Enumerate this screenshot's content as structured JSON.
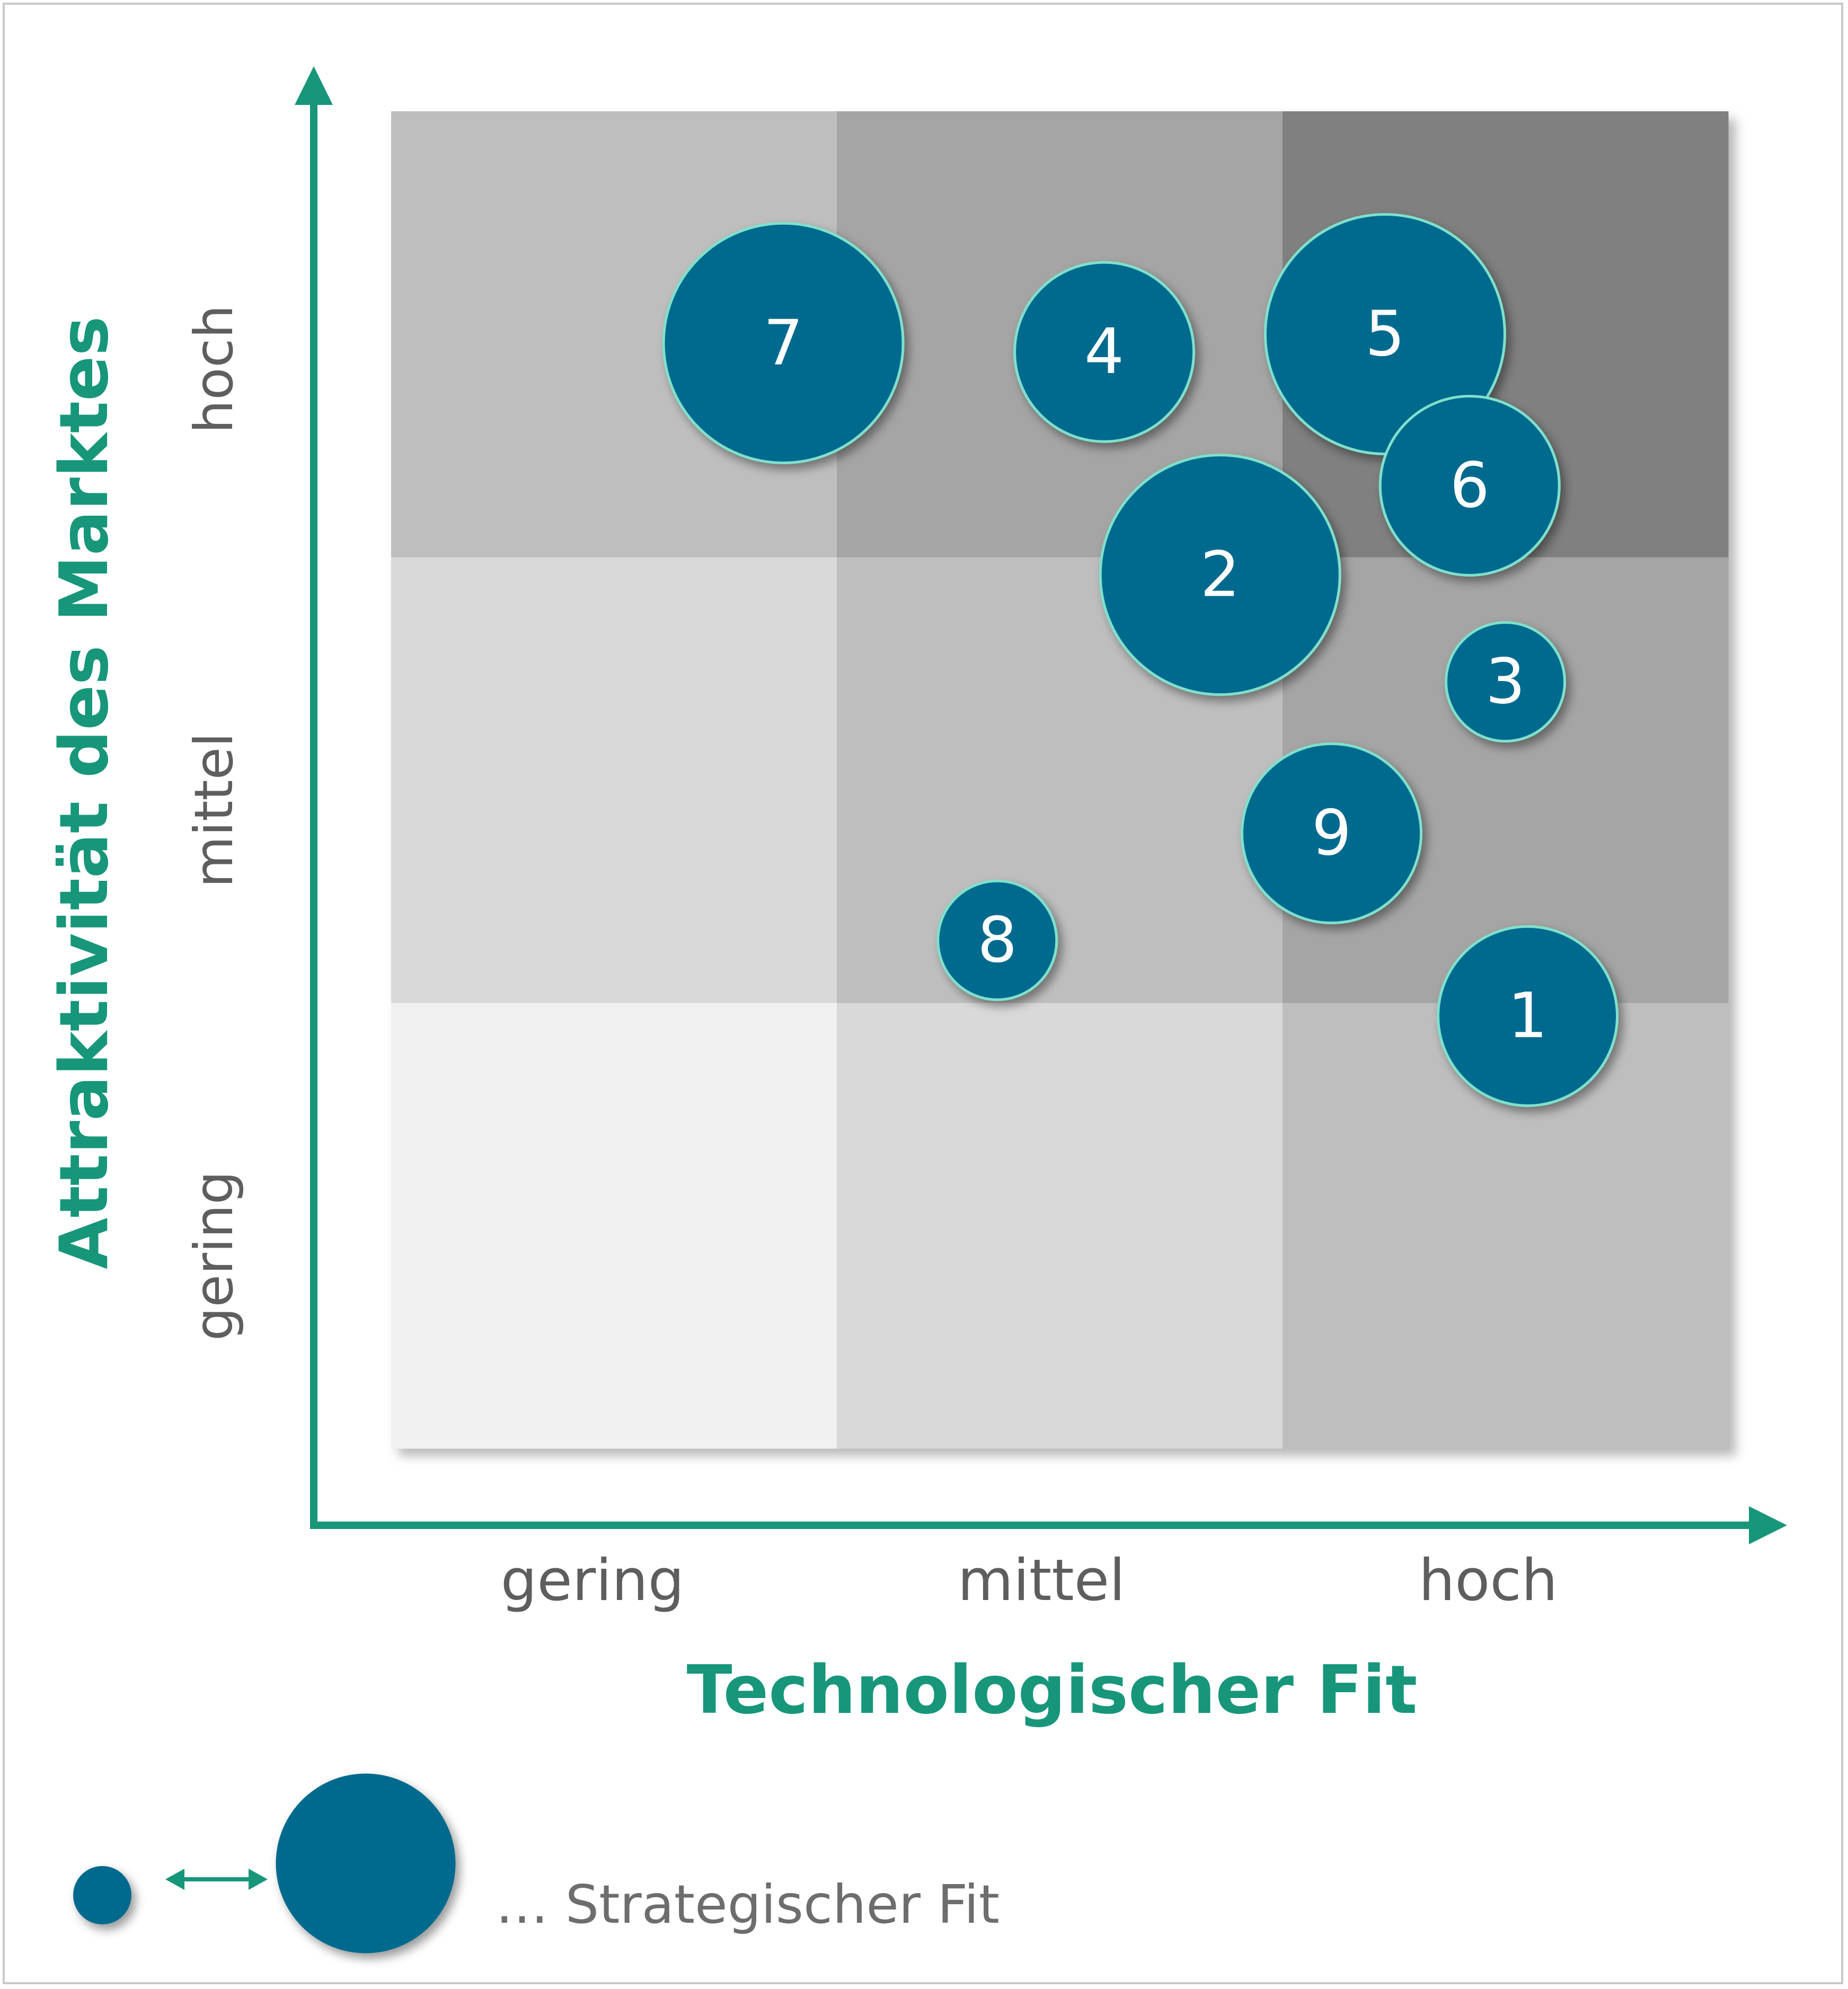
{
  "chart_data": {
    "type": "scatter",
    "subtype": "bubble-portfolio-matrix",
    "xlabel": "Technologischer Fit",
    "ylabel": "Attraktivität des Marktes",
    "x_categories": [
      "gering",
      "mittel",
      "hoch"
    ],
    "y_categories": [
      "gering",
      "mittel",
      "hoch"
    ],
    "xlim": [
      0,
      3
    ],
    "ylim": [
      0,
      3
    ],
    "grid": true,
    "cell_shades": [
      [
        "#f1f1f1",
        "#d9d9d9",
        "#bebebe"
      ],
      [
        "#d9d9d9",
        "#bebebe",
        "#a5a5a5"
      ],
      [
        "#bebebe",
        "#a5a5a5",
        "#808080"
      ]
    ],
    "bubble_color": "#006a8e",
    "bubble_outline": "#7fe0cc",
    "label_color": "#ffffff",
    "axis_color": "#17967a",
    "points": [
      {
        "label": "1",
        "x": 2.55,
        "y": 0.97,
        "size": 4
      },
      {
        "label": "2",
        "x": 1.86,
        "y": 1.96,
        "size": 5
      },
      {
        "label": "3",
        "x": 2.5,
        "y": 1.72,
        "size": 3
      },
      {
        "label": "4",
        "x": 1.6,
        "y": 2.46,
        "size": 4
      },
      {
        "label": "5",
        "x": 2.23,
        "y": 2.5,
        "size": 5
      },
      {
        "label": "6",
        "x": 2.42,
        "y": 2.16,
        "size": 4
      },
      {
        "label": "7",
        "x": 0.88,
        "y": 2.48,
        "size": 5
      },
      {
        "label": "8",
        "x": 1.36,
        "y": 1.14,
        "size": 3
      },
      {
        "label": "9",
        "x": 2.11,
        "y": 1.38,
        "size": 4
      }
    ],
    "legend": {
      "text": "… Strategischer Fit",
      "min_size": 2,
      "max_size": 5
    }
  }
}
